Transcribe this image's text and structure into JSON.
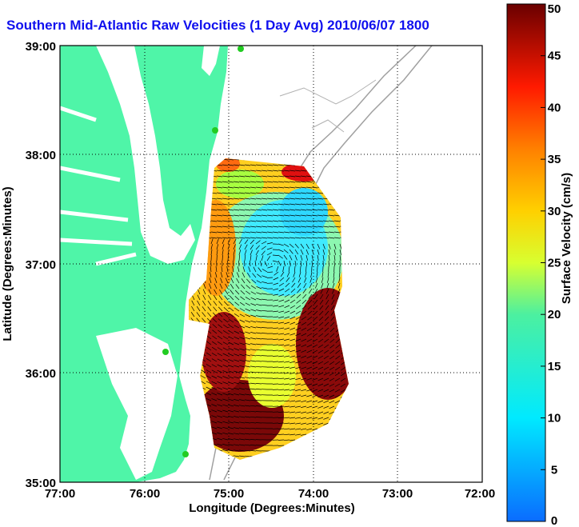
{
  "title": "Southern Mid-Atlantic Raw Velocities (1 Day Avg) 2010/06/07 1800 EDT",
  "title_visible": "Southern Mid-Atlantic Raw Velocities (1 Day Avg) 2010/06/07 1800",
  "axes": {
    "xlabel": "Longitude (Degrees:Minutes)",
    "ylabel": "Latitude (Degrees:Minutes)",
    "x_ticks": [
      "77:00",
      "76:00",
      "75:00",
      "74:00",
      "73:00",
      "72:00"
    ],
    "y_ticks": [
      "39:00",
      "38:00",
      "37:00",
      "36:00",
      "35:00"
    ]
  },
  "colorbar": {
    "label": "Surface Velocity (cm/s)",
    "ticks": [
      "50",
      "45",
      "40",
      "35",
      "30",
      "25",
      "20",
      "15",
      "10",
      "5",
      "0"
    ],
    "min": 0,
    "max": 50
  },
  "colors": {
    "land": "#4ff5a8",
    "ocean": "#ffffff",
    "title": "#1010ee",
    "station": "#22cc22"
  }
}
